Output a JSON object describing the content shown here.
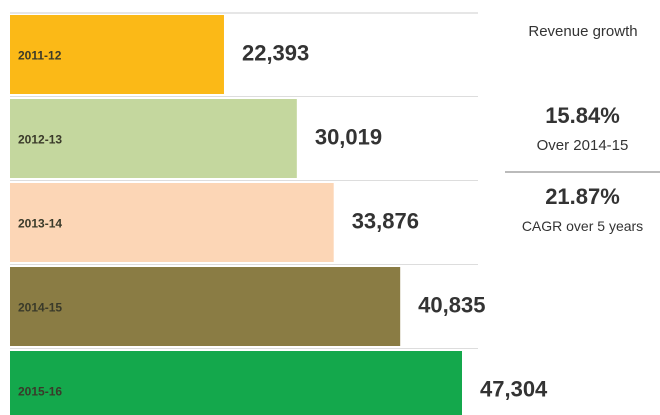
{
  "chart_data": {
    "type": "bar",
    "orientation": "horizontal",
    "categories": [
      "2011-12",
      "2012-13",
      "2013-14",
      "2014-15",
      "2015-16"
    ],
    "values": [
      22393,
      30019,
      33876,
      40835,
      47304
    ],
    "value_labels": [
      "22,393",
      "30,019",
      "33,876",
      "40,835",
      "47,304"
    ],
    "colors": [
      "#fbb917",
      "#c4d79e",
      "#fcd6b6",
      "#8a7c44",
      "#14a84c"
    ],
    "annotations": {
      "heading": "Revenue growth",
      "growth": "15.84%",
      "growth_note": "Over 2014-15",
      "cagr": "21.87%",
      "cagr_note": "CAGR over 5 years"
    }
  }
}
